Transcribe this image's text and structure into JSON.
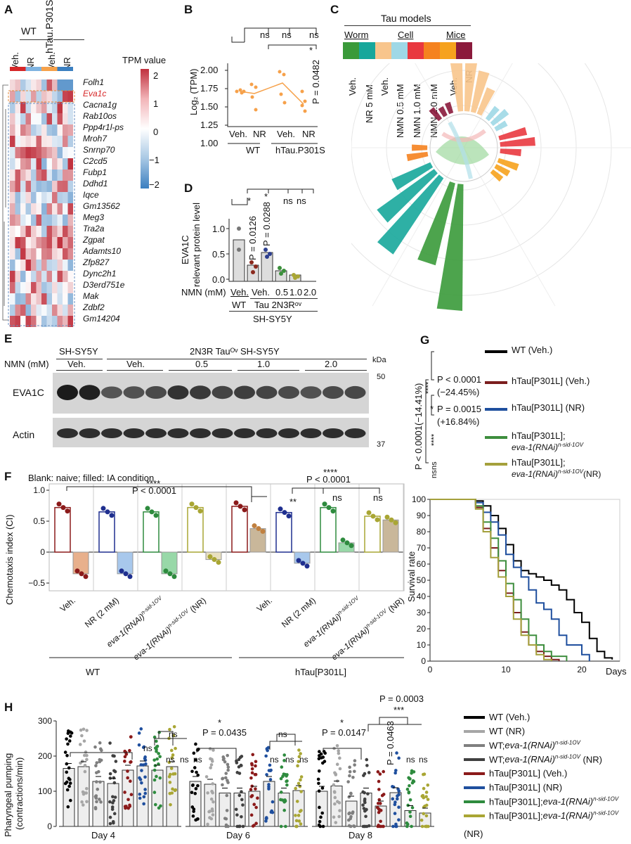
{
  "panels": {
    "A": {
      "letter": "A",
      "groups": [
        "WT",
        "hTau.P301S"
      ],
      "conditions": [
        "Veh.",
        "NR",
        "Veh.",
        "NR"
      ],
      "legend_title": "TPM value",
      "legend_ticks": [
        "2",
        "1",
        "0",
        "−1",
        "−2"
      ],
      "genes": [
        "Folh1",
        "Eva1c",
        "Cacna1g",
        "Rab10os",
        "Ppp4r1l-ps",
        "Mroh7",
        "Snrnp70",
        "C2cd5",
        "Fubp1",
        "Ddhd1",
        "Iqce",
        "Gm13562",
        "Meg3",
        "Tra2a",
        "Zgpat",
        "Adamts10",
        "Zfp827",
        "Dync2h1",
        "D3erd751e",
        "Mak",
        "Zdbf2",
        "Gm14204"
      ],
      "highlight_gene": "Eva1c",
      "colors": {
        "high": "#c0303d",
        "low": "#3b7fc0",
        "mid": "#ffffff",
        "highlight": "#d62728"
      }
    },
    "B": {
      "letter": "B",
      "ylabel": "Log₂ (TPM)",
      "yticks": [
        "2.00",
        "1.75",
        "1.50",
        "1.25",
        "1.00"
      ],
      "xticks": [
        "Veh.",
        "NR",
        "Veh.",
        "NR"
      ],
      "groups": [
        "WT",
        "hTau.P301S"
      ],
      "sig": [
        "ns",
        "ns",
        "ns"
      ],
      "pvalue": "P = 0.0482",
      "star": "*"
    },
    "C": {
      "letter": "C",
      "title": "Tau  models",
      "groups": [
        "Worm",
        "Cell",
        "Mice"
      ],
      "colors": [
        "#3a9a3a",
        "#17a79b",
        "#f8c58c",
        "#9fd8e6",
        "#e9383f",
        "#f5821f",
        "#f6a21d",
        "#8b1a3c"
      ],
      "labels": [
        "Veh.",
        "NR 5 mM",
        "Veh.",
        "NMN 0.5 mM",
        "NMN 1.0 mM",
        "NMN 2.0 mM",
        "Veh.",
        "NR"
      ]
    },
    "D": {
      "letter": "D",
      "ylabel_1": "EVA1C",
      "ylabel_2": "relevant protein level",
      "yticks": [
        "1.0",
        "0.5",
        "0.0"
      ],
      "nmn_label": "NMN (mM)",
      "xticks": [
        "Veh.",
        "Veh.",
        "0.5",
        "1.0",
        "2.0"
      ],
      "groups": [
        "WT",
        "Tau 2N3Rᵒᵛ"
      ],
      "cell": "SH-SY5Y",
      "p1": "P = 0.0126",
      "p2": "P = 0.0288",
      "sig": [
        "ns",
        "ns"
      ],
      "star": "*"
    },
    "E": {
      "letter": "E",
      "lane_groups": [
        "SH-SY5Y",
        "2N3R Tauᴼᵛ SH-SY5Y"
      ],
      "nmn_label": "NMN (mM)",
      "conditions": [
        "Veh.",
        "Veh.",
        "0.5",
        "1.0",
        "2.0"
      ],
      "rows": [
        "EVA1C",
        "Actin"
      ],
      "kda": "kDa",
      "markers": [
        "50",
        "37"
      ]
    },
    "F": {
      "letter": "F",
      "note": "Blank: naive; filled: IA condition",
      "ylabel": "Chemotaxis index (CI)",
      "yticks": [
        "1.0",
        "0.5",
        "0",
        "−0.5"
      ],
      "sig_stars": "****",
      "pvalue": "P < 0.0001",
      "sig2": "**",
      "ns": "ns",
      "xlabels": [
        "Veh.",
        "NR (2 mM)",
        "eva-1(RNAi)",
        "eva-1(RNAi)",
        "Veh.",
        "NR (2 mM)",
        "eva-1(RNAi)",
        "eva-1(RNAi)"
      ],
      "sup": "n-sid-1OV",
      "nr_suffix": " (NR)",
      "groups": [
        "WT",
        "hTau[P301L]"
      ]
    },
    "G": {
      "letter": "G",
      "legend": [
        "WT (Veh.)",
        "hTau[P301L] (Veh.)",
        "hTau[P301L] (NR)",
        "hTau[P301L];",
        "hTau[P301L];"
      ],
      "legend_sub": "eva-1(RNAi)",
      "legend_sup": "n-sid-1OV",
      "legend_nr": "(NR)",
      "colors": [
        "#000000",
        "#7b1e1e",
        "#1f4f9e",
        "#3e8e3e",
        "#a4a03c"
      ],
      "stats": [
        "****",
        "P < 0.0001",
        "(−24.45%)",
        "*",
        "P = 0.0015",
        "(+16.84%)",
        "****",
        "ns",
        "ns"
      ],
      "vstat": "P < 0.0001(−14.41%)",
      "ylabel": "Survival rate",
      "xlabel": "Days",
      "yticks": [
        "100",
        "90",
        "80",
        "70",
        "60",
        "50",
        "40",
        "30",
        "20",
        "10",
        "0"
      ],
      "xticks": [
        "0",
        "10",
        "20"
      ]
    },
    "H": {
      "letter": "H",
      "ylabel_1": "Pharyngeal pumping",
      "ylabel_2": "(contractions/min)",
      "yticks": [
        "300",
        "200",
        "100",
        "0"
      ],
      "days": [
        "Day 4",
        "Day 6",
        "Day 8"
      ],
      "p_day6": "P = 0.0435",
      "p_day8": "P = 0.0147",
      "p_top": "P = 0.0003",
      "p_mid": "P = 0.0463",
      "stars": [
        "*",
        "***"
      ],
      "ns": "ns",
      "legend": [
        "WT (Veh.)",
        "WT (NR)",
        "WT;",
        "WT;",
        "hTau[P301L] (Veh.)",
        "hTau[P301L] (NR)",
        "hTau[P301L];",
        "hTau[P301L];"
      ],
      "legend_sub": "eva-1(RNAi)",
      "legend_sup": "n-sid-1OV",
      "legend_nr": " (NR)",
      "legend_last": "(NR)",
      "colors": [
        "#000000",
        "#a6a6a6",
        "#7f7f7f",
        "#404040",
        "#8b1a1a",
        "#1f4f9e",
        "#2e8b3e",
        "#a9a634"
      ]
    }
  }
}
